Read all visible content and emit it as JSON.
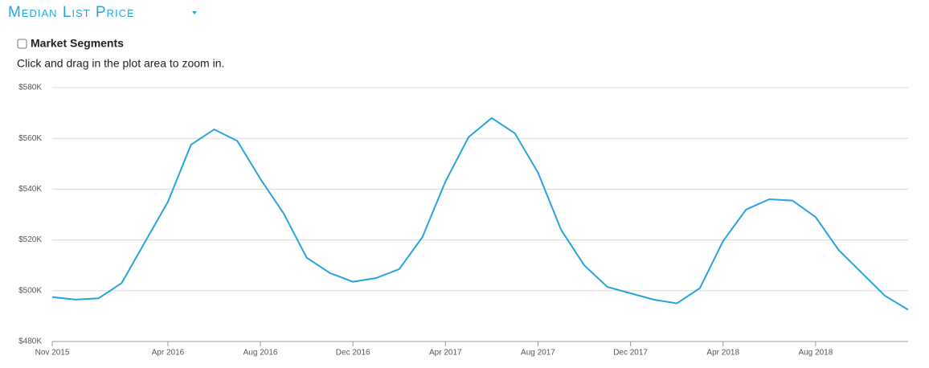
{
  "header": {
    "title": "Median List Price"
  },
  "controls": {
    "checkbox_label": "Market Segments",
    "hint": "Click and drag in the plot area to zoom in."
  },
  "chart_data": {
    "type": "line",
    "x": [
      "2015-11",
      "2015-12",
      "2016-01",
      "2016-02",
      "2016-03",
      "2016-04",
      "2016-05",
      "2016-06",
      "2016-07",
      "2016-08",
      "2016-09",
      "2016-10",
      "2016-11",
      "2016-12",
      "2017-01",
      "2017-02",
      "2017-03",
      "2017-04",
      "2017-05",
      "2017-06",
      "2017-07",
      "2017-08",
      "2017-09",
      "2017-10",
      "2017-11",
      "2017-12",
      "2018-01",
      "2018-02",
      "2018-03",
      "2018-04",
      "2018-05",
      "2018-06",
      "2018-07",
      "2018-08",
      "2018-09",
      "2018-10",
      "2018-11",
      "2018-12"
    ],
    "series": [
      {
        "name": "Median List Price",
        "color": "#29a3e0",
        "values": [
          497.5,
          496.5,
          497,
          503,
          519,
          535,
          557.5,
          563.5,
          559,
          544,
          530.5,
          513,
          507,
          503.5,
          505,
          508.5,
          521,
          543,
          560.5,
          568,
          562,
          546.5,
          524,
          510,
          501.5,
          499,
          496.5,
          495,
          501,
          519.5,
          532,
          536,
          535.5,
          529,
          516,
          507,
          498,
          492.5
        ]
      }
    ],
    "xlim": [
      "2015-11",
      "2018-12"
    ],
    "xticks": [
      {
        "value": "2015-11",
        "label": "Nov 2015"
      },
      {
        "value": "2016-04",
        "label": "Apr 2016"
      },
      {
        "value": "2016-08",
        "label": "Aug 2016"
      },
      {
        "value": "2016-12",
        "label": "Dec 2016"
      },
      {
        "value": "2017-04",
        "label": "Apr 2017"
      },
      {
        "value": "2017-08",
        "label": "Aug 2017"
      },
      {
        "value": "2017-12",
        "label": "Dec 2017"
      },
      {
        "value": "2018-04",
        "label": "Apr 2018"
      },
      {
        "value": "2018-08",
        "label": "Aug 2018"
      }
    ],
    "ylim": [
      480,
      580
    ],
    "yticks": [
      {
        "value": 480,
        "label": "$480K"
      },
      {
        "value": 500,
        "label": "$500K"
      },
      {
        "value": 520,
        "label": "$520K"
      },
      {
        "value": 540,
        "label": "$540K"
      },
      {
        "value": 560,
        "label": "$560K"
      },
      {
        "value": 580,
        "label": "$580K"
      }
    ],
    "grid": true
  }
}
